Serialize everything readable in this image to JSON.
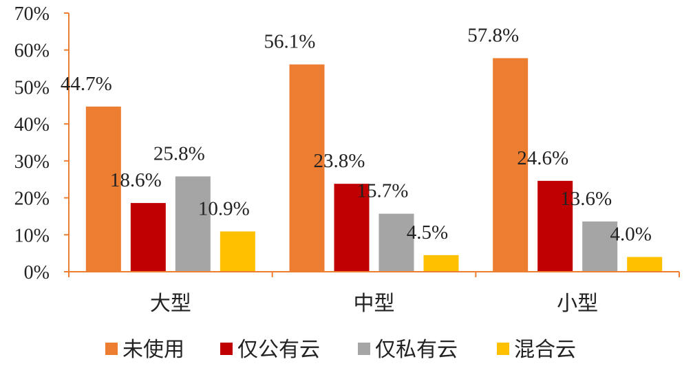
{
  "chart_data": {
    "type": "bar",
    "categories": [
      "大型",
      "中型",
      "小型"
    ],
    "series": [
      {
        "name": "未使用",
        "color": "#ED7D31",
        "values": [
          44.7,
          56.1,
          57.8
        ],
        "labels": [
          "44.7%",
          "56.1%",
          "57.8%"
        ]
      },
      {
        "name": "仅公有云",
        "color": "#C00000",
        "values": [
          18.6,
          23.8,
          24.6
        ],
        "labels": [
          "18.6%",
          "23.8%",
          "24.6%"
        ]
      },
      {
        "name": "仅私有云",
        "color": "#A5A5A5",
        "values": [
          25.8,
          15.7,
          13.6
        ],
        "labels": [
          "25.8%",
          "15.7%",
          "13.6%"
        ]
      },
      {
        "name": "混合云",
        "color": "#FFC000",
        "values": [
          10.9,
          4.5,
          4.0
        ],
        "labels": [
          "10.9%",
          "4.5%",
          "4.0%"
        ]
      }
    ],
    "yticks": [
      "0%",
      "10%",
      "20%",
      "30%",
      "40%",
      "50%",
      "60%",
      "70%"
    ],
    "ylim": [
      0,
      70
    ],
    "axis_color": "#ED7D31",
    "grid": false,
    "legend_position": "bottom"
  }
}
